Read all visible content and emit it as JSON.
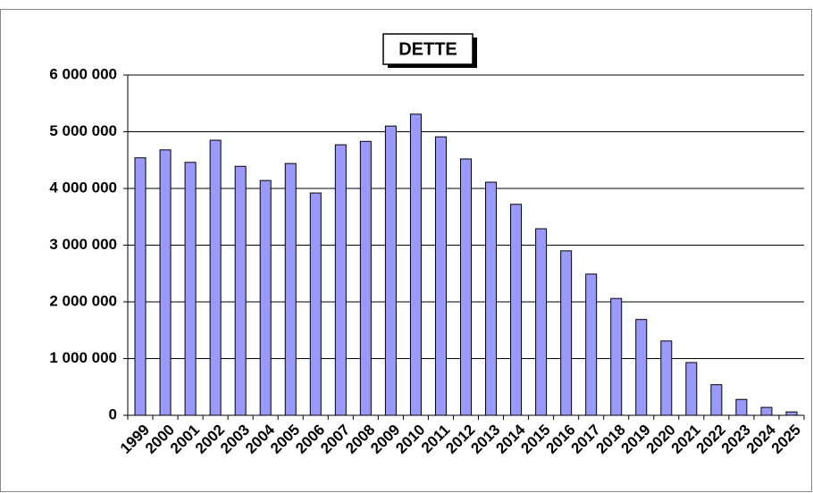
{
  "chart_data": {
    "type": "bar",
    "title": "DETTE",
    "categories": [
      "1999",
      "2000",
      "2001",
      "2002",
      "2003",
      "2004",
      "2005",
      "2006",
      "2007",
      "2008",
      "2009",
      "2010",
      "2011",
      "2012",
      "2013",
      "2014",
      "2015",
      "2016",
      "2017",
      "2018",
      "2019",
      "2020",
      "2021",
      "2022",
      "2023",
      "2024",
      "2025"
    ],
    "values": [
      4540000,
      4680000,
      4460000,
      4850000,
      4390000,
      4140000,
      4440000,
      3920000,
      4770000,
      4830000,
      5100000,
      5310000,
      4910000,
      4520000,
      4110000,
      3720000,
      3290000,
      2900000,
      2490000,
      2060000,
      1690000,
      1310000,
      930000,
      540000,
      280000,
      140000,
      60000
    ],
    "color": "#9999ff",
    "ylim": [
      0,
      6000000
    ],
    "yticks": [
      0,
      {
        "value": 1000000,
        "label": "1 000 000"
      },
      {
        "value": 2000000,
        "label": "2 000 000"
      },
      {
        "value": 3000000,
        "label": "3 000 000"
      },
      {
        "value": 4000000,
        "label": "4 000 000"
      },
      {
        "value": 5000000,
        "label": "5 000 000"
      },
      {
        "value": 6000000,
        "label": "6 000 000"
      }
    ],
    "grid": true
  }
}
